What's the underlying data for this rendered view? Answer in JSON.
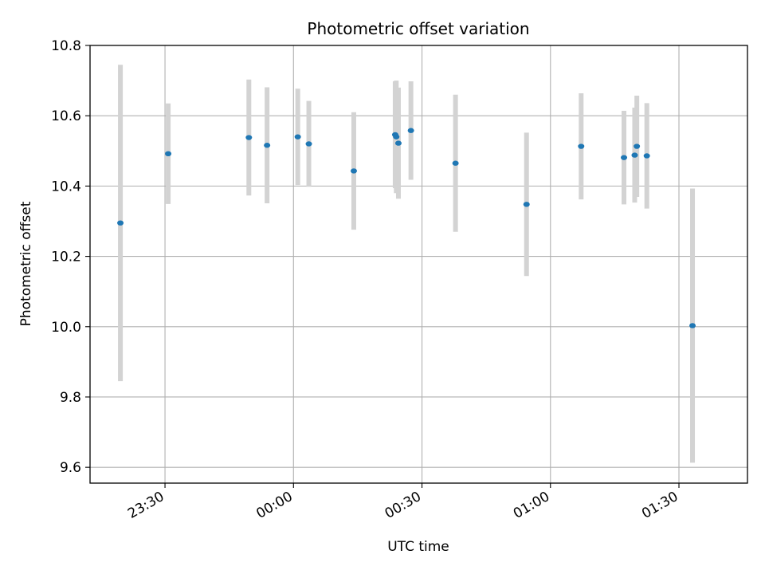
{
  "chart_data": {
    "type": "scatter",
    "title": "Photometric offset variation",
    "xlabel": "UTC time",
    "ylabel": "Photometric offset",
    "x_axis": {
      "kind": "time",
      "range": [
        "23:12:30",
        "01:46:00"
      ],
      "ticks": [
        "23:30",
        "00:00",
        "00:30",
        "01:00",
        "01:30"
      ]
    },
    "y_axis": {
      "range": [
        9.555,
        10.8
      ],
      "ticks": [
        "9.6",
        "9.8",
        "10.0",
        "10.2",
        "10.4",
        "10.6",
        "10.8"
      ]
    },
    "grid": true,
    "colors": {
      "point": "#1f77b4",
      "errorbar": "#d3d3d3",
      "grid": "#b0b0b0"
    },
    "points": [
      {
        "x": "23:19:35",
        "y": 10.295,
        "err": 0.45
      },
      {
        "x": "23:30:45",
        "y": 10.492,
        "err": 0.143
      },
      {
        "x": "23:49:35",
        "y": 10.538,
        "err": 0.165
      },
      {
        "x": "23:53:50",
        "y": 10.516,
        "err": 0.165
      },
      {
        "x": "00:01:00",
        "y": 10.54,
        "err": 0.137
      },
      {
        "x": "00:03:35",
        "y": 10.52,
        "err": 0.122
      },
      {
        "x": "00:14:05",
        "y": 10.443,
        "err": 0.167
      },
      {
        "x": "00:23:45",
        "y": 10.546,
        "err": 0.152
      },
      {
        "x": "00:24:00",
        "y": 10.54,
        "err": 0.16
      },
      {
        "x": "00:24:30",
        "y": 10.522,
        "err": 0.158
      },
      {
        "x": "00:27:25",
        "y": 10.558,
        "err": 0.14
      },
      {
        "x": "00:37:50",
        "y": 10.465,
        "err": 0.195
      },
      {
        "x": "00:54:25",
        "y": 10.348,
        "err": 0.204
      },
      {
        "x": "01:07:10",
        "y": 10.513,
        "err": 0.151
      },
      {
        "x": "01:17:10",
        "y": 10.481,
        "err": 0.133
      },
      {
        "x": "01:19:40",
        "y": 10.488,
        "err": 0.135
      },
      {
        "x": "01:20:10",
        "y": 10.513,
        "err": 0.144
      },
      {
        "x": "01:22:30",
        "y": 10.486,
        "err": 0.15
      },
      {
        "x": "01:33:10",
        "y": 10.003,
        "err": 0.39
      }
    ]
  }
}
